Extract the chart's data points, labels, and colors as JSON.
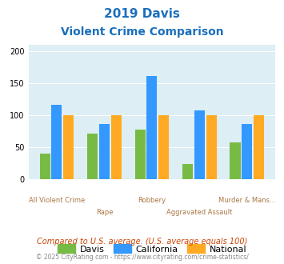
{
  "title_line1": "2019 Davis",
  "title_line2": "Violent Crime Comparison",
  "title_color": "#1a6fba",
  "categories": [
    "All Violent Crime",
    "Rape",
    "Robbery",
    "Aggravated Assault",
    "Murder & Mans..."
  ],
  "davis": [
    41,
    72,
    78,
    24,
    58
  ],
  "california": [
    117,
    87,
    162,
    108,
    86
  ],
  "national": [
    100,
    100,
    100,
    100,
    100
  ],
  "davis_color": "#77bb44",
  "california_color": "#3399ff",
  "national_color": "#ffaa22",
  "ylim": [
    0,
    210
  ],
  "yticks": [
    0,
    50,
    100,
    150,
    200
  ],
  "bg_color": "#ddeef5",
  "footer1": "Compared to U.S. average. (U.S. average equals 100)",
  "footer1_color": "#cc4400",
  "footer2": "© 2025 CityRating.com - https://www.cityrating.com/crime-statistics/",
  "footer2_color": "#888888"
}
